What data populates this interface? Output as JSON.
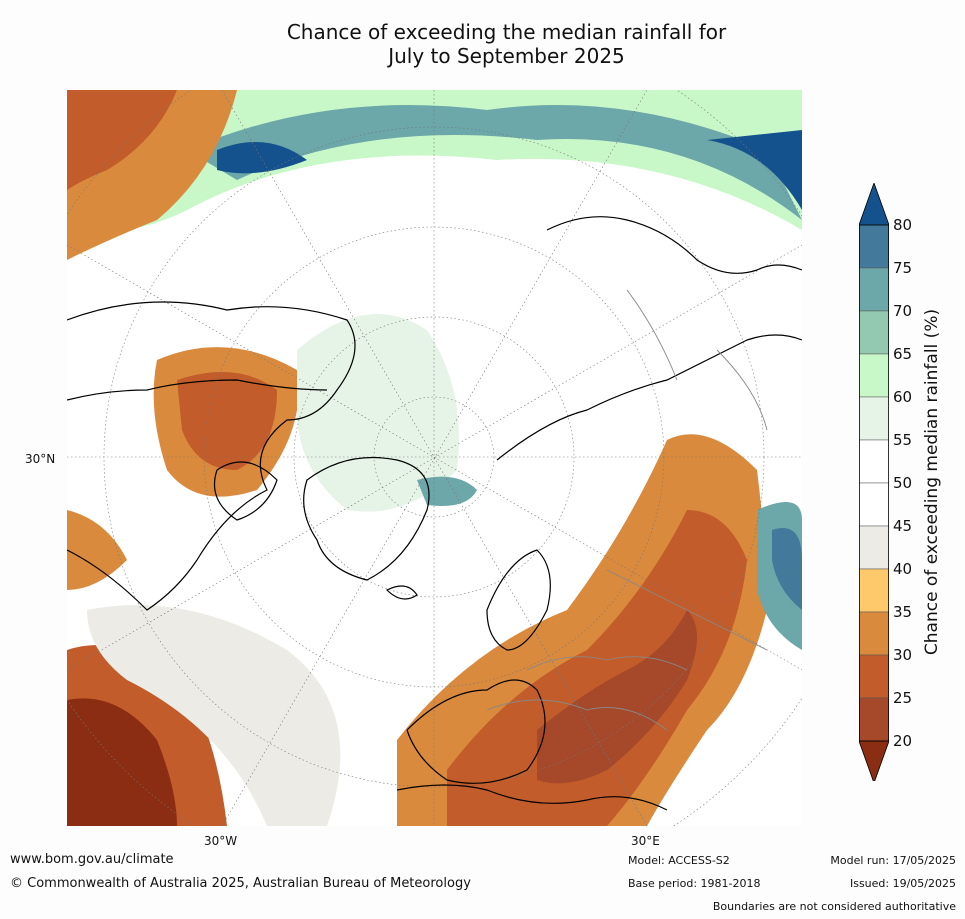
{
  "title": {
    "line1": "Chance of exceeding the median rainfall for",
    "line2": "July to September 2025"
  },
  "map": {
    "projection": "north-polar-stereographic",
    "lat_label": "30°N",
    "lon_labels": [
      "30°W",
      "30°E"
    ]
  },
  "colorbar": {
    "label": "Chance of exceeding median rainfall (%)",
    "ticks": [
      "20",
      "25",
      "30",
      "35",
      "40",
      "45",
      "50",
      "55",
      "60",
      "65",
      "70",
      "75",
      "80"
    ],
    "colors": [
      "#8b2d12",
      "#a6482a",
      "#c25c2a",
      "#d98a3d",
      "#fdc96a",
      "#ecebe6",
      "#ffffff",
      "#ffffff",
      "#e6f4e7",
      "#c8f7c8",
      "#93c9b0",
      "#6ca7a9",
      "#437a9c",
      "#14528e"
    ]
  },
  "footer": {
    "website": "www.bom.gov.au/climate",
    "copyright": "© Commonwealth of Australia 2025, Australian Bureau of Meteorology",
    "model": "Model: ACCESS-S2",
    "base_period": "Base period: 1981-2018",
    "model_run": "Model run: 17/05/2025",
    "issued": "Issued: 19/05/2025",
    "boundaries_note": "Boundaries are not considered authoritative"
  }
}
